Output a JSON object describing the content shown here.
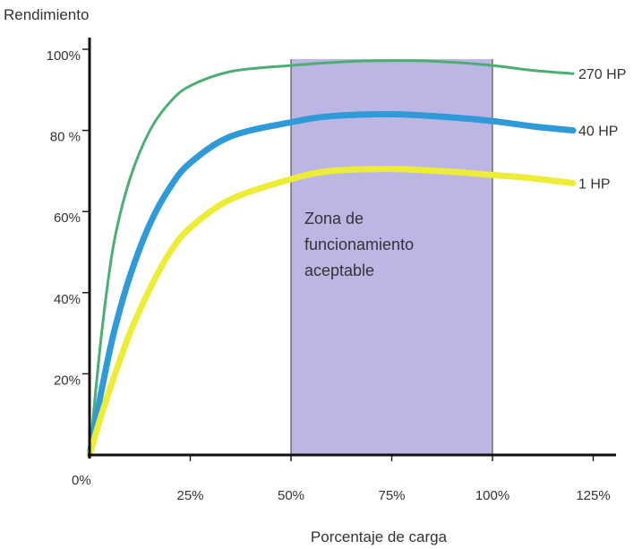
{
  "chart_data": {
    "type": "line",
    "ylabel": "Rendimiento",
    "xlabel": "Porcentaje de carga",
    "xlim": [
      0,
      130
    ],
    "ylim": [
      0,
      100
    ],
    "x_ticks": [
      {
        "value": 25,
        "label": "25%"
      },
      {
        "value": 50,
        "label": "50%"
      },
      {
        "value": 75,
        "label": "75%"
      },
      {
        "value": 100,
        "label": "100%"
      },
      {
        "value": 125,
        "label": "125%"
      }
    ],
    "y_ticks": [
      {
        "value": 20,
        "label": "20%"
      },
      {
        "value": 40,
        "label": "40%"
      },
      {
        "value": 60,
        "label": "60%"
      },
      {
        "value": 80,
        "label": "80 %"
      },
      {
        "value": 100,
        "label": "100%"
      }
    ],
    "origin_label": "0%",
    "band": {
      "x_start": 50,
      "x_end": 100,
      "label_lines": [
        "Zona de",
        "funcionamiento",
        "aceptable"
      ],
      "color": "#bcb6e4"
    },
    "series": [
      {
        "name": "270 HP",
        "color": "#4caf72",
        "stroke": 3,
        "points": [
          [
            0,
            0
          ],
          [
            3,
            30
          ],
          [
            6,
            52
          ],
          [
            10,
            68
          ],
          [
            15,
            80
          ],
          [
            20,
            87
          ],
          [
            25,
            91
          ],
          [
            35,
            94.5
          ],
          [
            50,
            96
          ],
          [
            65,
            97
          ],
          [
            80,
            97.2
          ],
          [
            90,
            96.8
          ],
          [
            100,
            96
          ],
          [
            110,
            94.8
          ],
          [
            120,
            94
          ]
        ]
      },
      {
        "name": "40 HP",
        "color": "#2f9ad8",
        "stroke": 7,
        "points": [
          [
            0,
            0
          ],
          [
            3,
            16
          ],
          [
            6,
            30
          ],
          [
            10,
            44
          ],
          [
            15,
            57
          ],
          [
            20,
            66
          ],
          [
            25,
            72
          ],
          [
            35,
            78.5
          ],
          [
            50,
            82
          ],
          [
            60,
            83.5
          ],
          [
            75,
            84
          ],
          [
            90,
            83.2
          ],
          [
            100,
            82.3
          ],
          [
            110,
            81
          ],
          [
            120,
            80
          ]
        ]
      },
      {
        "name": "1 HP",
        "color": "#eded38",
        "stroke": 7,
        "points": [
          [
            0,
            0
          ],
          [
            3,
            10
          ],
          [
            6,
            19
          ],
          [
            10,
            30
          ],
          [
            15,
            41
          ],
          [
            20,
            50
          ],
          [
            25,
            56
          ],
          [
            35,
            63
          ],
          [
            50,
            68
          ],
          [
            60,
            70
          ],
          [
            75,
            70.5
          ],
          [
            90,
            69.8
          ],
          [
            100,
            69
          ],
          [
            110,
            68.2
          ],
          [
            120,
            67
          ]
        ]
      }
    ]
  }
}
